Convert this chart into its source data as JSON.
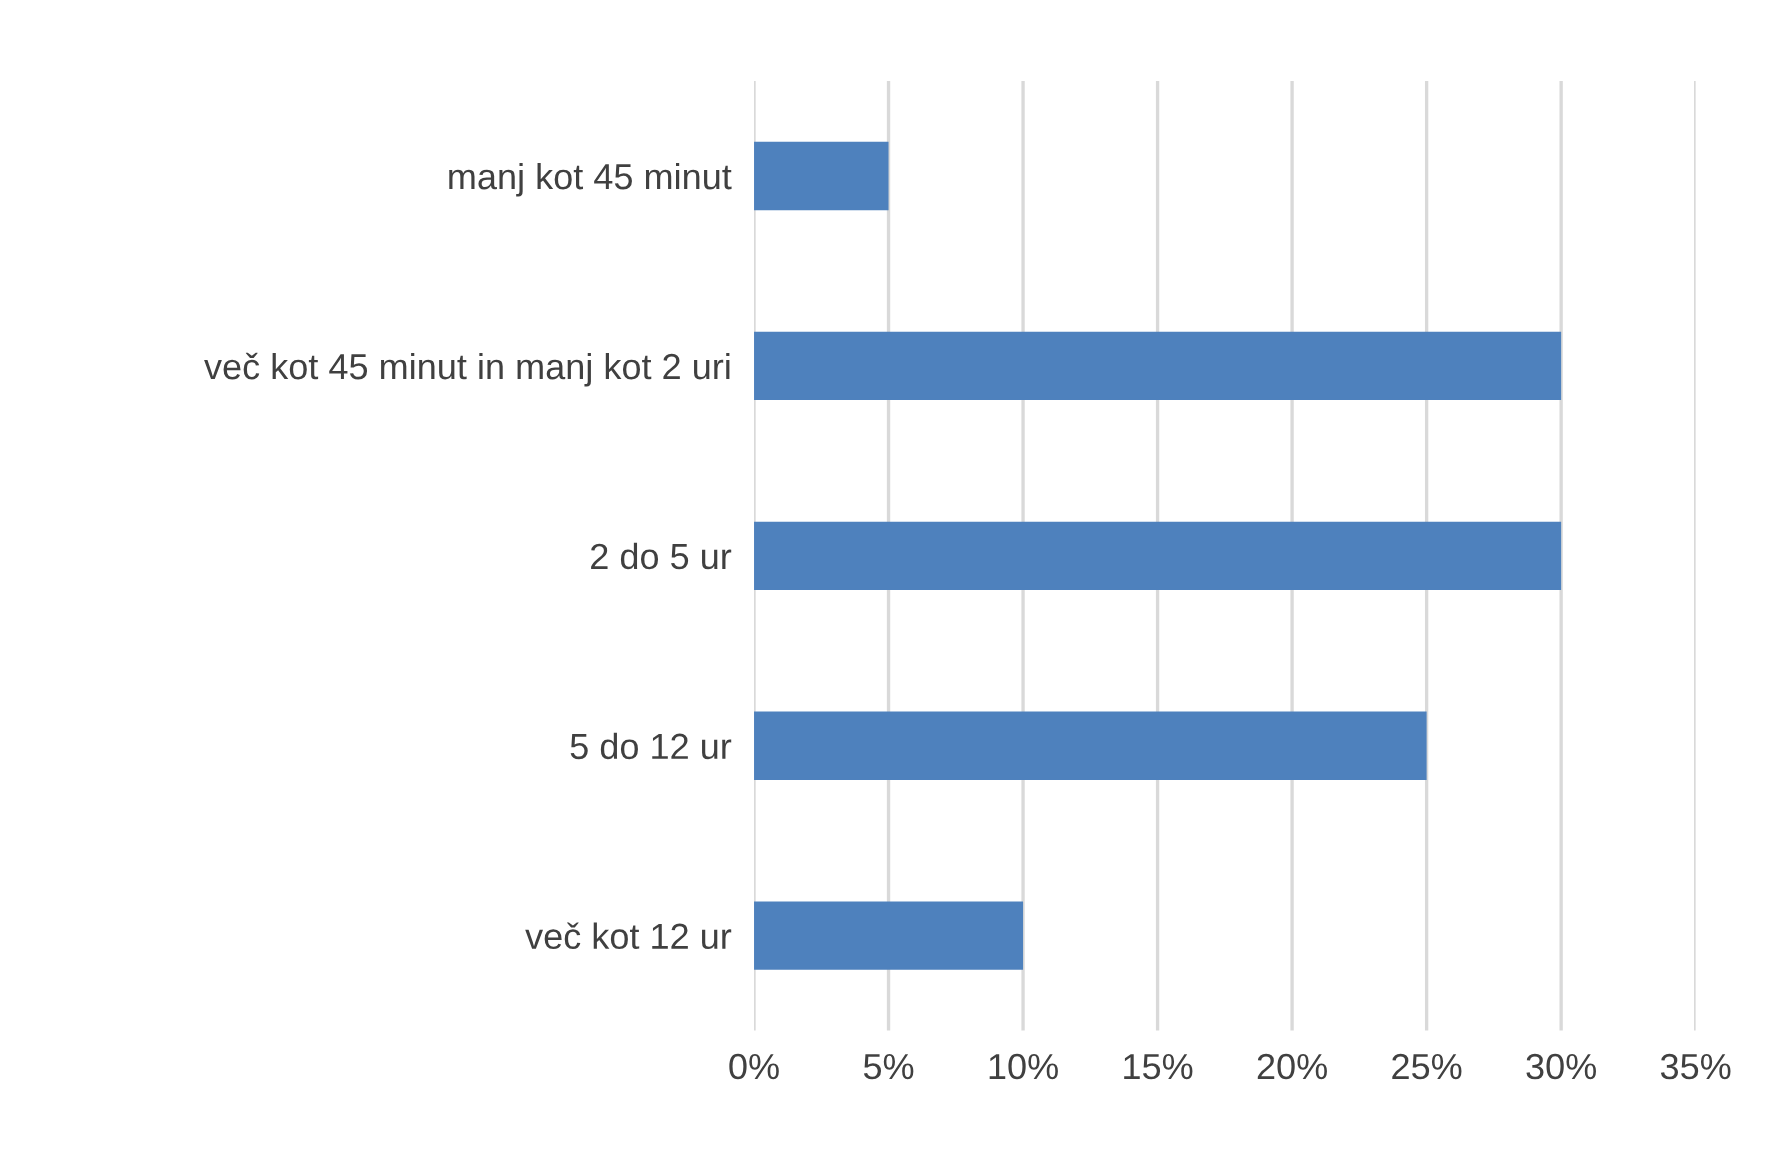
{
  "chart_data": {
    "type": "bar",
    "orientation": "horizontal",
    "categories": [
      "manj kot 45 minut",
      "več kot 45 minut in manj kot 2 uri",
      "2 do 5 ur",
      "5 do 12 ur",
      "več kot 12 ur"
    ],
    "values": [
      5,
      30,
      30,
      25,
      10
    ],
    "color": "#4e81bd",
    "xlim": [
      0,
      35
    ],
    "xticks": [
      {
        "value": 0,
        "label": "0%"
      },
      {
        "value": 5,
        "label": "5%"
      },
      {
        "value": 10,
        "label": "10%"
      },
      {
        "value": 15,
        "label": "15%"
      },
      {
        "value": 20,
        "label": "20%"
      },
      {
        "value": 25,
        "label": "25%"
      },
      {
        "value": 30,
        "label": "30%"
      },
      {
        "value": 35,
        "label": "35%"
      }
    ],
    "grid": "x"
  }
}
